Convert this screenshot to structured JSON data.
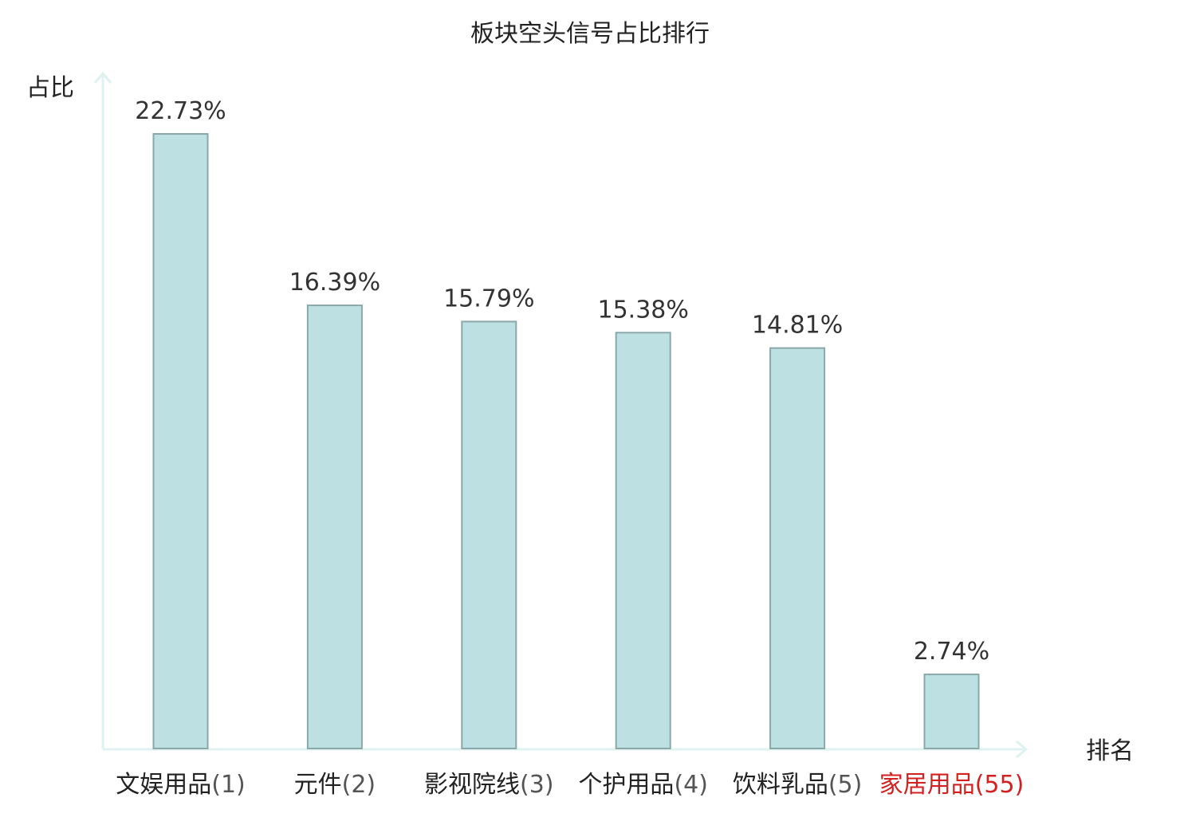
{
  "chart_data": {
    "type": "bar",
    "title": "板块空头信号占比排行",
    "ylabel": "占比",
    "xlabel": "排名",
    "categories": [
      {
        "name": "文娱用品",
        "rank": "(1)",
        "highlight": false
      },
      {
        "name": "元件",
        "rank": "(2)",
        "highlight": false
      },
      {
        "name": "影视院线",
        "rank": "(3)",
        "highlight": false
      },
      {
        "name": "个护用品",
        "rank": "(4)",
        "highlight": false
      },
      {
        "name": "饮料乳品",
        "rank": "(5)",
        "highlight": false
      },
      {
        "name": "家居用品",
        "rank": "(55)",
        "highlight": true
      }
    ],
    "values": [
      22.73,
      16.39,
      15.79,
      15.38,
      14.81,
      2.74
    ],
    "value_labels": [
      "22.73%",
      "16.39%",
      "15.79%",
      "15.38%",
      "14.81%",
      "2.74%"
    ],
    "ylim": [
      0,
      22.73
    ],
    "grid": false,
    "colors": {
      "bar_fill": "#bde1e3",
      "bar_stroke": "#8aa8aa",
      "axis": "#dff2ef",
      "text": "#222222",
      "rank_text": "#555555",
      "highlight": "#d42020"
    }
  }
}
